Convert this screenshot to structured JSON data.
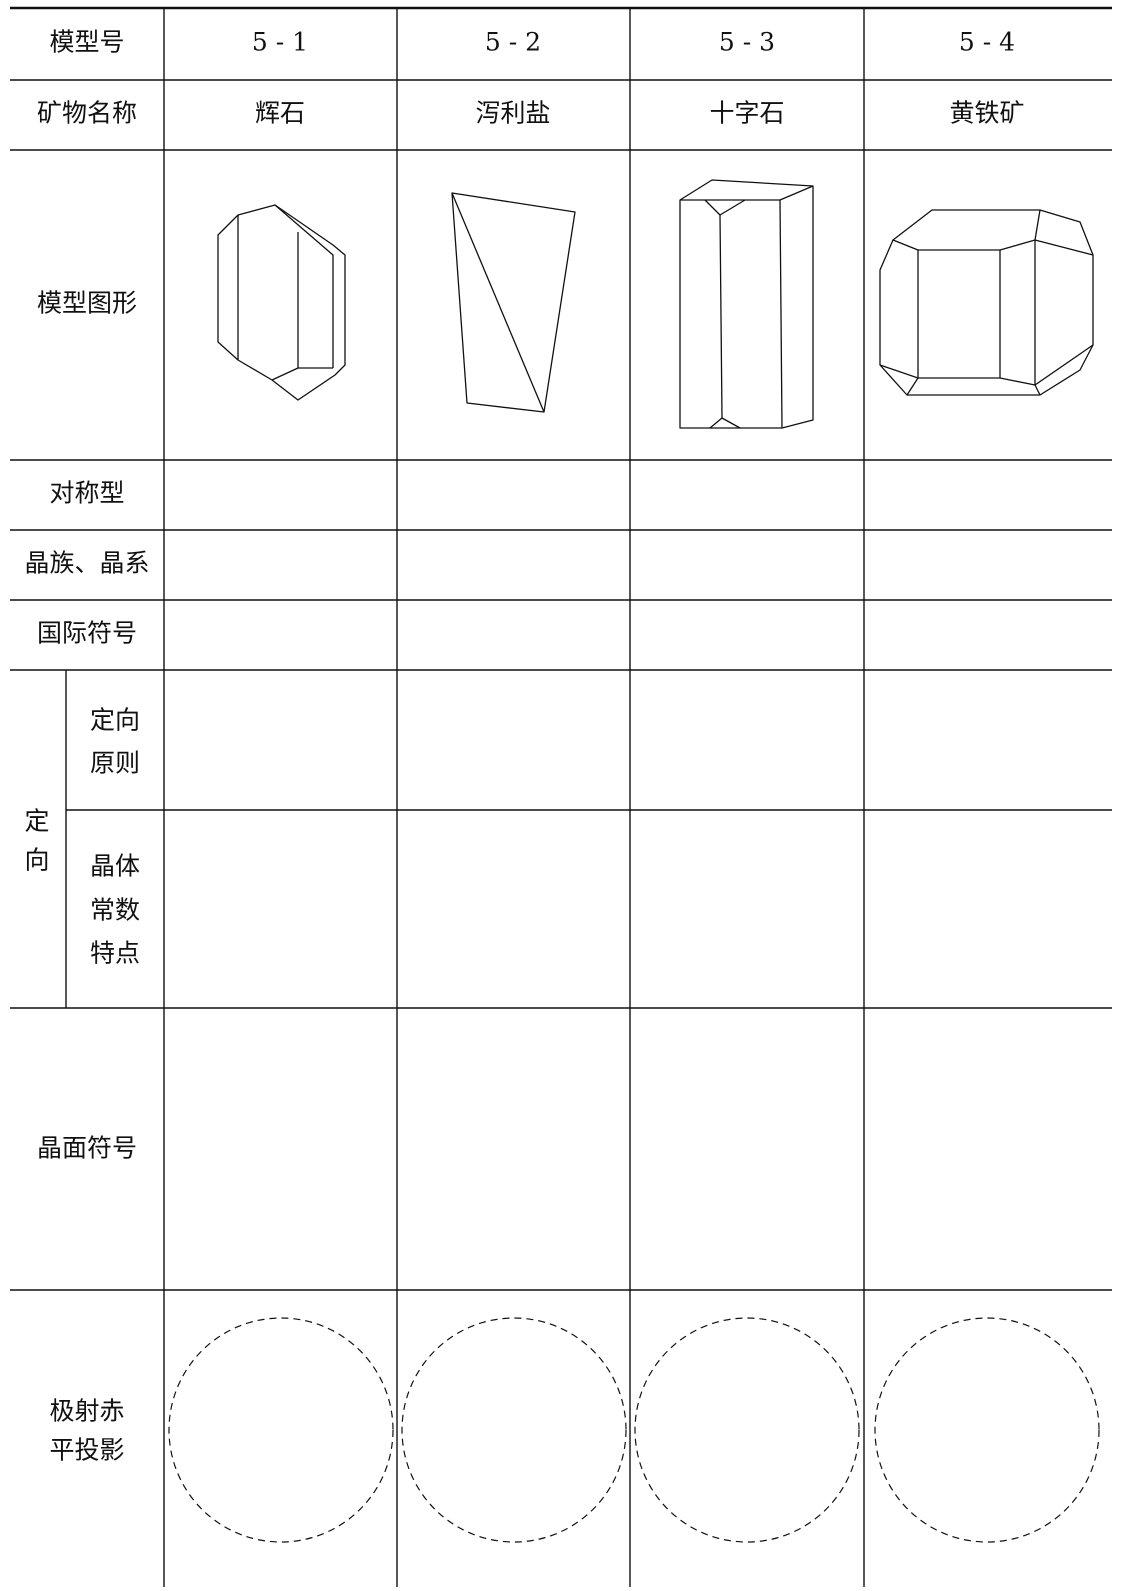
{
  "header": {
    "model_label": "模型号",
    "models": [
      "5 - 1",
      "5 - 2",
      "5 - 3",
      "5 - 4"
    ]
  },
  "name_row": {
    "label": "矿物名称",
    "names": [
      "辉石",
      "泻利盐",
      "十字石",
      "黄铁矿"
    ]
  },
  "rows": {
    "figure": "模型图形",
    "symmetry": "对称型",
    "crystal_system": "晶族、晶系",
    "intl_symbol": "国际符号",
    "orientation": {
      "label": [
        "定",
        "向"
      ],
      "principle": [
        "定向",
        "原则"
      ],
      "constants": [
        "晶体",
        "常数",
        "特点"
      ]
    },
    "face_symbol": "晶面符号",
    "projection": [
      "极射赤",
      "平投影"
    ]
  }
}
